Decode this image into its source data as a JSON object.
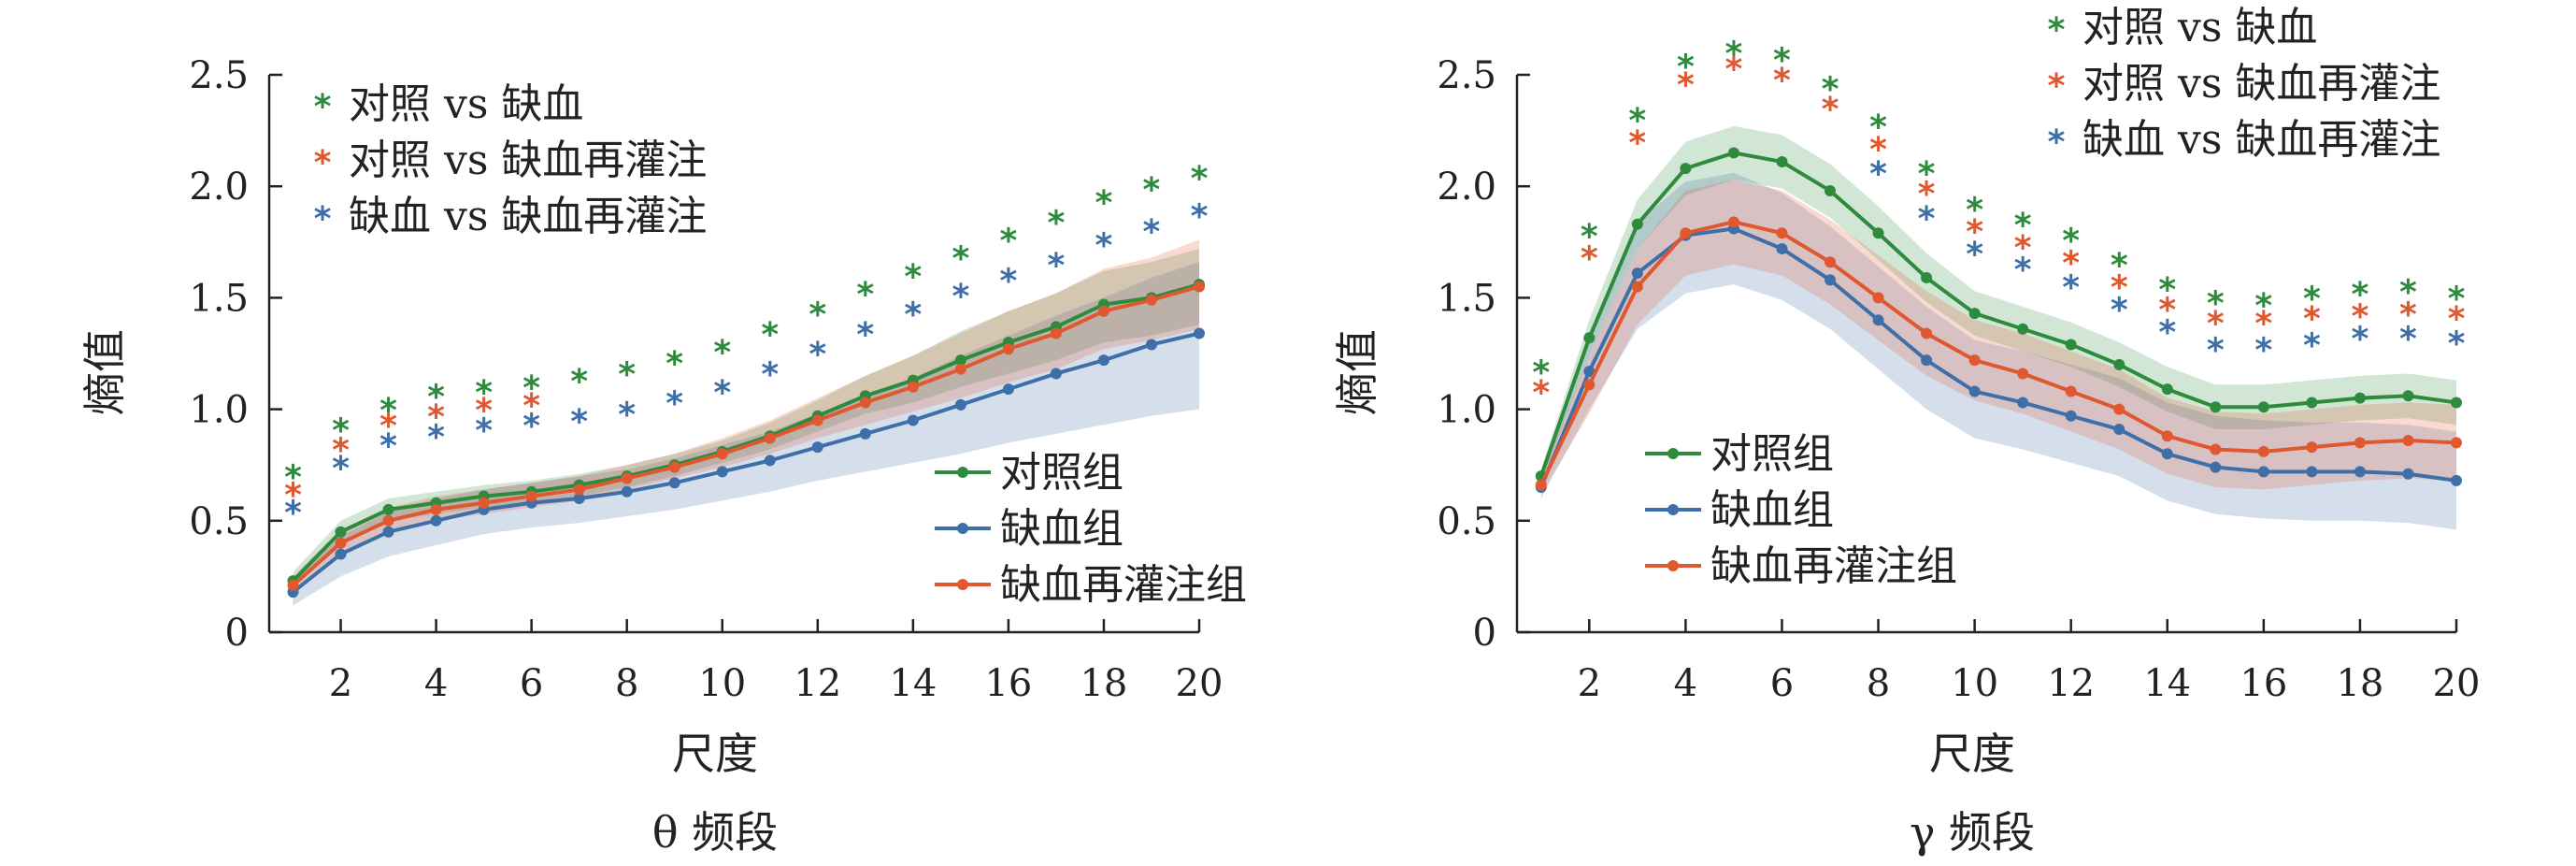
{
  "chart_data": [
    {
      "type": "line",
      "title": "θ 频段",
      "xlabel": "尺度",
      "ylabel": "熵值",
      "xlim": [
        0.5,
        20
      ],
      "ylim": [
        0,
        2.5
      ],
      "xticks": [
        "2",
        "4",
        "6",
        "8",
        "10",
        "12",
        "14",
        "16",
        "18",
        "20"
      ],
      "yticks": [
        "0",
        "0.5",
        "1.0",
        "1.5",
        "2.0",
        "2.5"
      ],
      "legend_position": "bottom-right",
      "x": [
        1,
        2,
        3,
        4,
        5,
        6,
        7,
        8,
        9,
        10,
        11,
        12,
        13,
        14,
        15,
        16,
        17,
        18,
        19,
        20
      ],
      "series": [
        {
          "name": "对照组",
          "color": "#2e8b3e",
          "values": [
            0.23,
            0.45,
            0.55,
            0.58,
            0.61,
            0.63,
            0.66,
            0.7,
            0.75,
            0.81,
            0.88,
            0.97,
            1.06,
            1.13,
            1.22,
            1.3,
            1.37,
            1.47,
            1.5,
            1.56
          ],
          "band": [
            [
              0.2,
              0.27
            ],
            [
              0.4,
              0.5
            ],
            [
              0.5,
              0.6
            ],
            [
              0.53,
              0.63
            ],
            [
              0.56,
              0.66
            ],
            [
              0.58,
              0.68
            ],
            [
              0.61,
              0.71
            ],
            [
              0.65,
              0.75
            ],
            [
              0.7,
              0.8
            ],
            [
              0.76,
              0.86
            ],
            [
              0.82,
              0.94
            ],
            [
              0.9,
              1.04
            ],
            [
              0.98,
              1.15
            ],
            [
              1.03,
              1.24
            ],
            [
              1.1,
              1.35
            ],
            [
              1.16,
              1.44
            ],
            [
              1.22,
              1.52
            ],
            [
              1.3,
              1.62
            ],
            [
              1.33,
              1.66
            ],
            [
              1.38,
              1.72
            ]
          ]
        },
        {
          "name": "缺血组",
          "color": "#3f6fa8",
          "values": [
            0.18,
            0.35,
            0.45,
            0.5,
            0.55,
            0.58,
            0.6,
            0.63,
            0.67,
            0.72,
            0.77,
            0.83,
            0.89,
            0.95,
            1.02,
            1.09,
            1.16,
            1.22,
            1.29,
            1.34
          ],
          "band": [
            [
              0.12,
              0.24
            ],
            [
              0.25,
              0.43
            ],
            [
              0.34,
              0.54
            ],
            [
              0.39,
              0.6
            ],
            [
              0.44,
              0.64
            ],
            [
              0.47,
              0.67
            ],
            [
              0.49,
              0.7
            ],
            [
              0.52,
              0.73
            ],
            [
              0.55,
              0.78
            ],
            [
              0.59,
              0.84
            ],
            [
              0.63,
              0.9
            ],
            [
              0.68,
              0.98
            ],
            [
              0.72,
              1.06
            ],
            [
              0.76,
              1.14
            ],
            [
              0.8,
              1.24
            ],
            [
              0.85,
              1.33
            ],
            [
              0.89,
              1.42
            ],
            [
              0.93,
              1.5
            ],
            [
              0.97,
              1.59
            ],
            [
              1.0,
              1.66
            ]
          ]
        },
        {
          "name": "缺血再灌注组",
          "color": "#e0582f",
          "values": [
            0.21,
            0.4,
            0.5,
            0.55,
            0.58,
            0.61,
            0.64,
            0.69,
            0.74,
            0.8,
            0.87,
            0.95,
            1.03,
            1.1,
            1.18,
            1.27,
            1.34,
            1.44,
            1.49,
            1.55
          ],
          "band": [
            [
              0.17,
              0.25
            ],
            [
              0.35,
              0.46
            ],
            [
              0.45,
              0.56
            ],
            [
              0.5,
              0.61
            ],
            [
              0.53,
              0.64
            ],
            [
              0.56,
              0.67
            ],
            [
              0.59,
              0.7
            ],
            [
              0.64,
              0.75
            ],
            [
              0.69,
              0.8
            ],
            [
              0.74,
              0.87
            ],
            [
              0.8,
              0.95
            ],
            [
              0.87,
              1.05
            ],
            [
              0.93,
              1.15
            ],
            [
              0.99,
              1.24
            ],
            [
              1.05,
              1.34
            ],
            [
              1.12,
              1.44
            ],
            [
              1.18,
              1.52
            ],
            [
              1.27,
              1.63
            ],
            [
              1.31,
              1.68
            ],
            [
              1.36,
              1.76
            ]
          ]
        }
      ],
      "significance": [
        {
          "label": "对照 vs 缺血",
          "color": "#2e8b3e",
          "x": [
            1,
            2,
            3,
            4,
            5,
            6,
            7,
            8,
            9,
            10,
            11,
            12,
            13,
            14,
            15,
            16,
            17,
            18,
            19,
            20
          ],
          "y": [
            0.72,
            0.93,
            1.02,
            1.08,
            1.1,
            1.12,
            1.15,
            1.18,
            1.23,
            1.28,
            1.36,
            1.45,
            1.54,
            1.62,
            1.7,
            1.78,
            1.86,
            1.95,
            2.01,
            2.06
          ]
        },
        {
          "label": "对照 vs 缺血再灌注",
          "color": "#e0582f",
          "x": [
            1,
            2,
            3,
            4,
            5,
            6
          ],
          "y": [
            0.64,
            0.84,
            0.95,
            0.99,
            1.02,
            1.04
          ]
        },
        {
          "label": "缺血 vs 缺血再灌注",
          "color": "#3f6fa8",
          "x": [
            1,
            2,
            3,
            4,
            5,
            6,
            7,
            8,
            9,
            10,
            11,
            12,
            13,
            14,
            15,
            16,
            17,
            18,
            19,
            20
          ],
          "y": [
            0.56,
            0.76,
            0.86,
            0.9,
            0.93,
            0.95,
            0.97,
            1.0,
            1.05,
            1.1,
            1.18,
            1.27,
            1.36,
            1.45,
            1.53,
            1.6,
            1.67,
            1.76,
            1.82,
            1.89
          ]
        }
      ]
    },
    {
      "type": "line",
      "title": "γ 频段",
      "xlabel": "尺度",
      "ylabel": "熵值",
      "xlim": [
        0.5,
        20
      ],
      "ylim": [
        0,
        2.5
      ],
      "xticks": [
        "2",
        "4",
        "6",
        "8",
        "10",
        "12",
        "14",
        "16",
        "18",
        "20"
      ],
      "yticks": [
        "0",
        "0.5",
        "1.0",
        "1.5",
        "2.0",
        "2.5"
      ],
      "legend_position": "lower-left",
      "x": [
        1,
        2,
        3,
        4,
        5,
        6,
        7,
        8,
        9,
        10,
        11,
        12,
        13,
        14,
        15,
        16,
        17,
        18,
        19,
        20
      ],
      "series": [
        {
          "name": "对照组",
          "color": "#2e8b3e",
          "values": [
            0.7,
            1.32,
            1.83,
            2.08,
            2.15,
            2.11,
            1.98,
            1.79,
            1.59,
            1.43,
            1.36,
            1.29,
            1.2,
            1.09,
            1.01,
            1.01,
            1.03,
            1.05,
            1.06,
            1.03
          ],
          "band": [
            [
              0.67,
              0.73
            ],
            [
              1.24,
              1.4
            ],
            [
              1.72,
              1.94
            ],
            [
              1.96,
              2.2
            ],
            [
              2.03,
              2.27
            ],
            [
              1.99,
              2.23
            ],
            [
              1.86,
              2.1
            ],
            [
              1.67,
              1.91
            ],
            [
              1.48,
              1.7
            ],
            [
              1.33,
              1.53
            ],
            [
              1.26,
              1.46
            ],
            [
              1.19,
              1.39
            ],
            [
              1.1,
              1.3
            ],
            [
              0.99,
              1.19
            ],
            [
              0.91,
              1.11
            ],
            [
              0.91,
              1.11
            ],
            [
              0.93,
              1.13
            ],
            [
              0.95,
              1.15
            ],
            [
              0.96,
              1.16
            ],
            [
              0.93,
              1.13
            ]
          ]
        },
        {
          "name": "缺血组",
          "color": "#3f6fa8",
          "values": [
            0.65,
            1.17,
            1.61,
            1.78,
            1.81,
            1.72,
            1.58,
            1.4,
            1.22,
            1.08,
            1.03,
            0.97,
            0.91,
            0.8,
            0.74,
            0.72,
            0.72,
            0.72,
            0.71,
            0.68
          ],
          "band": [
            [
              0.6,
              0.7
            ],
            [
              1.0,
              1.32
            ],
            [
              1.36,
              1.84
            ],
            [
              1.52,
              2.02
            ],
            [
              1.56,
              2.06
            ],
            [
              1.49,
              1.97
            ],
            [
              1.36,
              1.82
            ],
            [
              1.18,
              1.64
            ],
            [
              1.0,
              1.46
            ],
            [
              0.87,
              1.31
            ],
            [
              0.82,
              1.26
            ],
            [
              0.76,
              1.2
            ],
            [
              0.7,
              1.14
            ],
            [
              0.59,
              1.03
            ],
            [
              0.53,
              0.97
            ],
            [
              0.51,
              0.95
            ],
            [
              0.5,
              0.94
            ],
            [
              0.5,
              0.94
            ],
            [
              0.49,
              0.93
            ],
            [
              0.46,
              0.9
            ]
          ]
        },
        {
          "name": "缺血再灌注组",
          "color": "#e0582f",
          "values": [
            0.66,
            1.11,
            1.55,
            1.79,
            1.84,
            1.79,
            1.66,
            1.5,
            1.34,
            1.22,
            1.16,
            1.08,
            1.0,
            0.88,
            0.82,
            0.81,
            0.83,
            0.85,
            0.86,
            0.85
          ],
          "band": [
            [
              0.62,
              0.7
            ],
            [
              0.98,
              1.24
            ],
            [
              1.38,
              1.72
            ],
            [
              1.6,
              1.98
            ],
            [
              1.65,
              2.03
            ],
            [
              1.6,
              1.98
            ],
            [
              1.47,
              1.85
            ],
            [
              1.31,
              1.69
            ],
            [
              1.15,
              1.53
            ],
            [
              1.04,
              1.4
            ],
            [
              0.98,
              1.34
            ],
            [
              0.9,
              1.26
            ],
            [
              0.82,
              1.18
            ],
            [
              0.71,
              1.05
            ],
            [
              0.65,
              0.99
            ],
            [
              0.64,
              0.98
            ],
            [
              0.66,
              1.0
            ],
            [
              0.68,
              1.02
            ],
            [
              0.69,
              1.03
            ],
            [
              0.68,
              1.02
            ]
          ]
        }
      ],
      "significance": [
        {
          "label": "对照 vs 缺血",
          "color": "#2e8b3e",
          "x": [
            1,
            2,
            3,
            4,
            5,
            6,
            7,
            8,
            9,
            10,
            11,
            12,
            13,
            14,
            15,
            16,
            17,
            18,
            19,
            20
          ],
          "y": [
            1.19,
            1.8,
            2.32,
            2.56,
            2.62,
            2.59,
            2.46,
            2.29,
            2.08,
            1.92,
            1.85,
            1.78,
            1.67,
            1.56,
            1.5,
            1.49,
            1.52,
            1.54,
            1.55,
            1.52
          ]
        },
        {
          "label": "对照 vs 缺血再灌注",
          "color": "#e0582f",
          "x": [
            1,
            2,
            3,
            4,
            5,
            6,
            7,
            8,
            9,
            10,
            11,
            12,
            13,
            14,
            15,
            16,
            17,
            18,
            19,
            20
          ],
          "y": [
            1.1,
            1.7,
            2.22,
            2.48,
            2.55,
            2.5,
            2.37,
            2.19,
            1.99,
            1.82,
            1.75,
            1.68,
            1.57,
            1.47,
            1.41,
            1.41,
            1.43,
            1.44,
            1.45,
            1.43
          ]
        },
        {
          "label": "缺血 vs 缺血再灌注",
          "color": "#3f6fa8",
          "x": [
            8,
            9,
            10,
            11,
            12,
            13,
            14,
            15,
            16,
            17,
            18,
            19,
            20
          ],
          "y": [
            2.08,
            1.88,
            1.72,
            1.65,
            1.57,
            1.47,
            1.37,
            1.29,
            1.29,
            1.31,
            1.34,
            1.34,
            1.32
          ]
        }
      ]
    }
  ]
}
